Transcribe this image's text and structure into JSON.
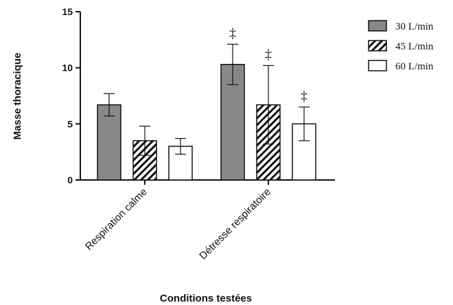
{
  "chart_data": {
    "type": "bar",
    "title": "",
    "xlabel": "Conditions testées",
    "ylabel": "Masse thoracique",
    "ylim": [
      0,
      15
    ],
    "yticks": [
      "0",
      "5",
      "10",
      "15"
    ],
    "categories": [
      "Respiration calme",
      "Détresse respiratoire"
    ],
    "series": [
      {
        "name": "30 L/min",
        "pattern": "gray",
        "fill": "#888888",
        "values": [
          6.7,
          10.3
        ],
        "errors": [
          1.0,
          1.8
        ]
      },
      {
        "name": "45 L/min",
        "pattern": "hatch",
        "fill": "#ffffff",
        "values": [
          3.5,
          6.7
        ],
        "errors": [
          1.3,
          3.5
        ]
      },
      {
        "name": "60 L/min",
        "pattern": "white",
        "fill": "#ffffff",
        "values": [
          3.0,
          5.0
        ],
        "errors": [
          0.7,
          1.5
        ]
      }
    ],
    "significance": [
      {
        "category": 1,
        "series": 0,
        "label": "‡"
      },
      {
        "category": 1,
        "series": 1,
        "label": "‡"
      },
      {
        "category": 1,
        "series": 2,
        "label": "‡"
      }
    ],
    "legend_position": "top-right",
    "grid": false
  }
}
